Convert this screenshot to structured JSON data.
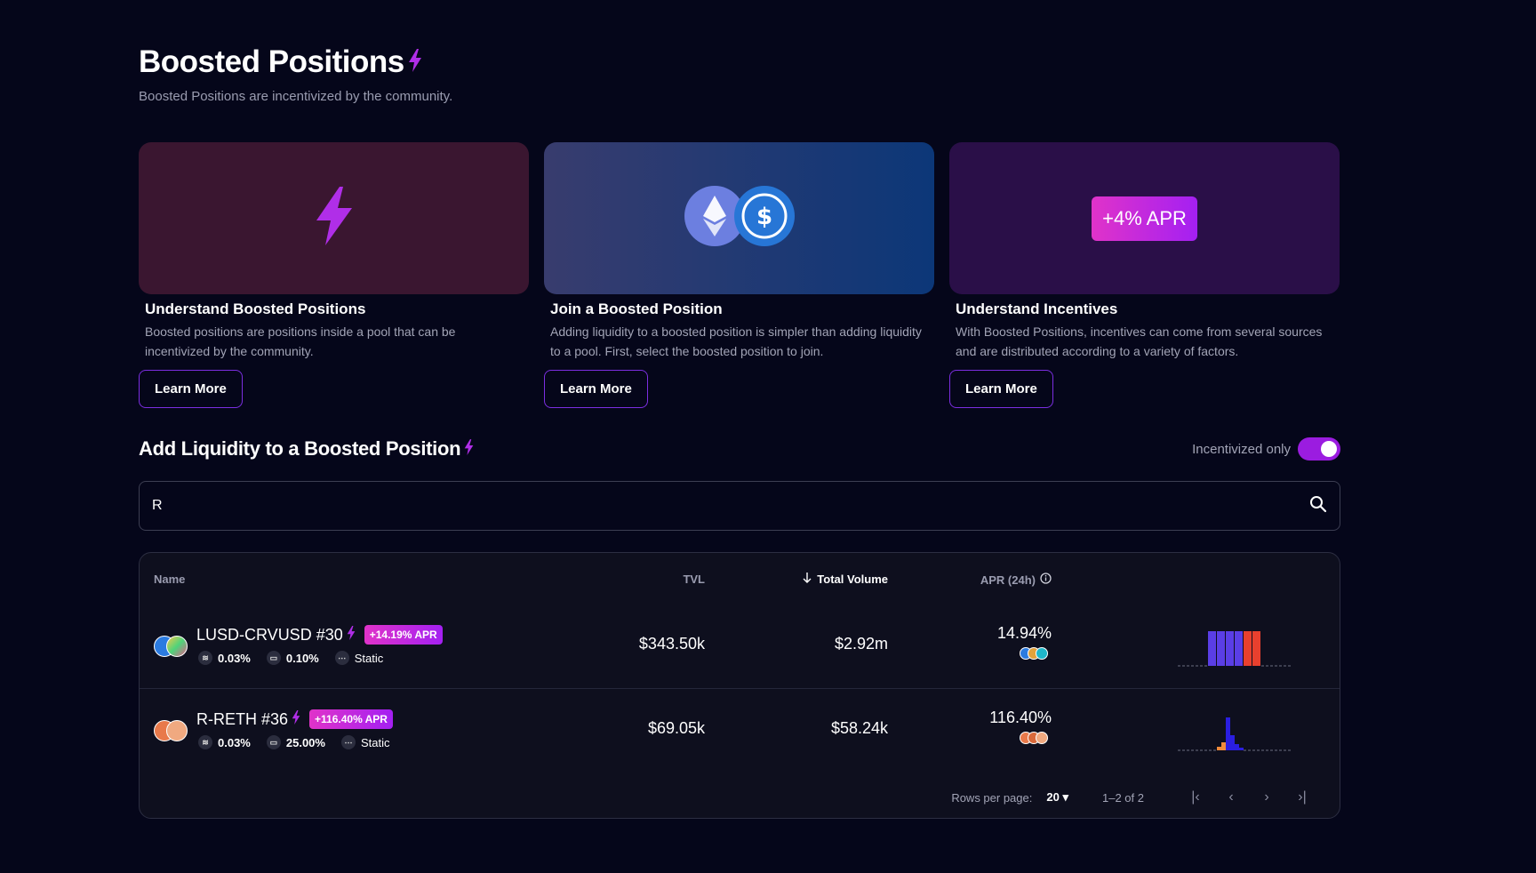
{
  "header": {
    "title": "Boosted Positions",
    "subtitle": "Boosted Positions are incentivized by the community."
  },
  "cards": [
    {
      "title": "Understand Boosted Positions",
      "description": "Boosted positions are positions inside a pool that can be incentivized by the community.",
      "button": "Learn More",
      "icon": "lightning-bolt-icon"
    },
    {
      "title": "Join a Boosted Position",
      "description": "Adding liquidity to a boosted position is simpler than adding liquidity to a pool. First, select the boosted position to join.",
      "button": "Learn More",
      "icon": "eth-usdc-icon"
    },
    {
      "title": "Understand Incentives",
      "description": "With Boosted Positions, incentives can come from several sources and are distributed according to a variety of factors.",
      "button": "Learn More",
      "badge": "+4% APR"
    }
  ],
  "section": {
    "title": "Add Liquidity to a Boosted Position",
    "toggle_label": "Incentivized only",
    "toggle_on": true
  },
  "search": {
    "value": "R",
    "placeholder": ""
  },
  "table": {
    "columns": {
      "name": "Name",
      "tvl": "TVL",
      "volume": "Total Volume",
      "apr": "APR (24h)"
    },
    "rows": [
      {
        "name": "LUSD-CRVUSD #30",
        "apr_badge": "+14.19% APR",
        "fee": "0.03%",
        "width": "0.10%",
        "strategy": "Static",
        "tvl": "$343.50k",
        "volume": "$2.92m",
        "apr": "14.94%"
      },
      {
        "name": "R-RETH #36",
        "apr_badge": "+116.40% APR",
        "fee": "0.03%",
        "width": "25.00%",
        "strategy": "Static",
        "tvl": "$69.05k",
        "volume": "$58.24k",
        "apr": "116.40%"
      }
    ],
    "pagination": {
      "rows_per_page_label": "Rows per page:",
      "rows_per_page": "20",
      "range": "1–2 of 2"
    }
  },
  "colors": {
    "background": "#05061a",
    "accent": "#9b1ce0",
    "badge_gradient": [
      "#e033c9",
      "#a420f2"
    ]
  }
}
